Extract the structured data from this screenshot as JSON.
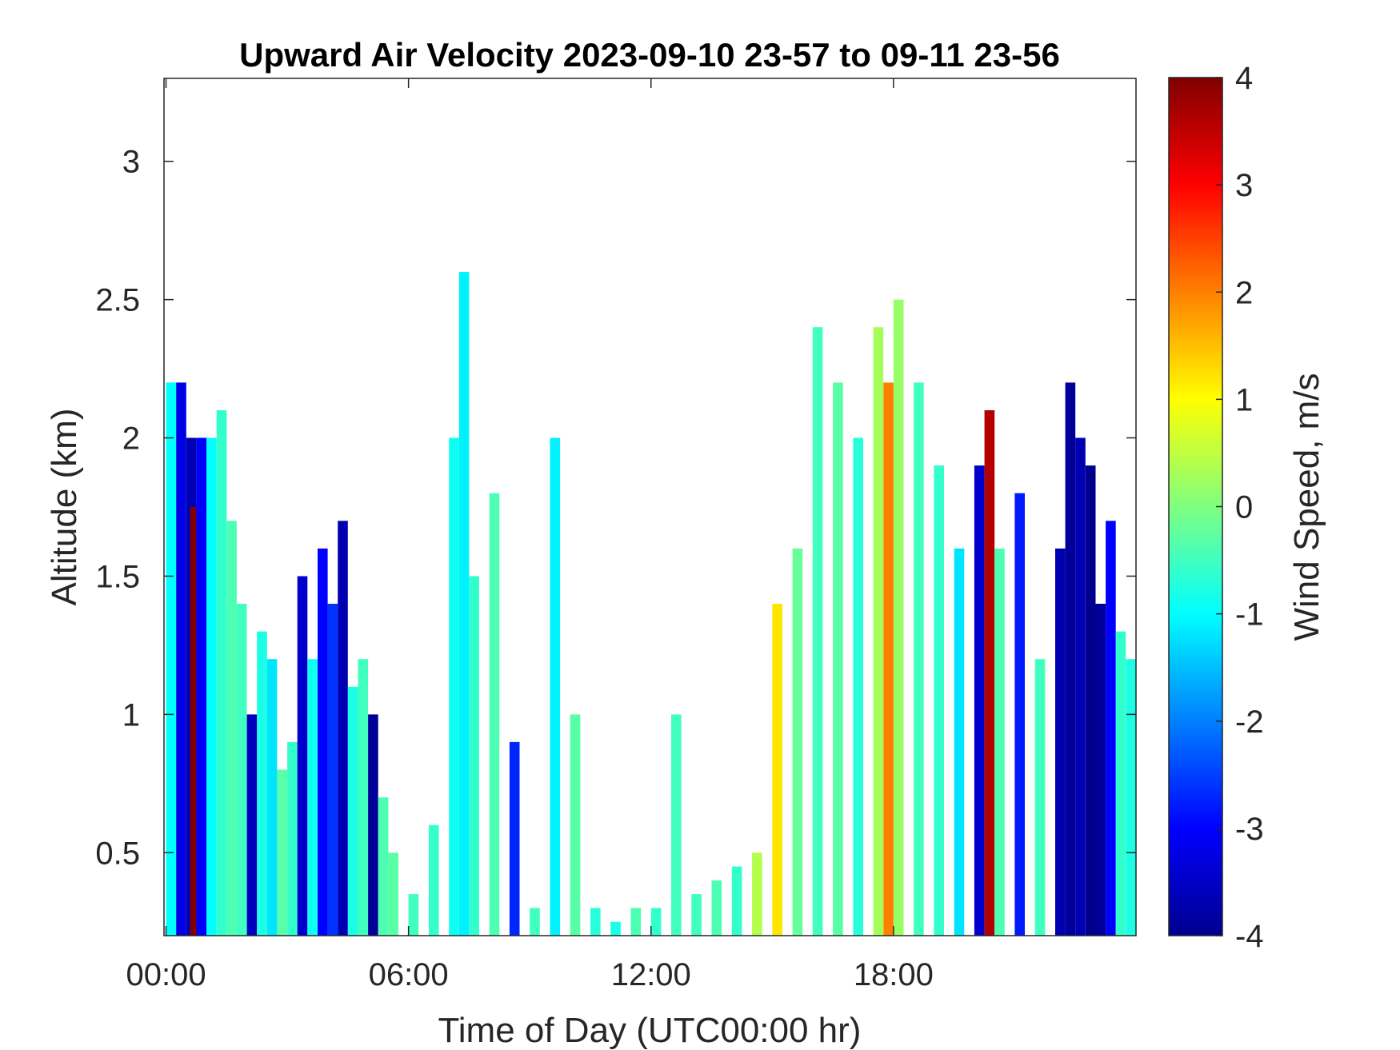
{
  "chart_data": {
    "type": "heatmap",
    "title": "Upward Air Velocity 2023-09-10 23-57 to 09-11 23-56",
    "xlabel": "Time of Day (UTC00:00 hr)",
    "ylabel": "Altitude (km)",
    "colorbar_label": "Wind Speed, m/s",
    "colormap": "jet",
    "xlim_hours": [
      -0.05,
      24.0
    ],
    "ylim_km": [
      0.2,
      3.3
    ],
    "clim": [
      -4,
      4
    ],
    "x_ticks": [
      {
        "value": 0,
        "label": "00:00"
      },
      {
        "value": 6,
        "label": "06:00"
      },
      {
        "value": 12,
        "label": "12:00"
      },
      {
        "value": 18,
        "label": "18:00"
      }
    ],
    "y_ticks": [
      {
        "value": 0.5,
        "label": "0.5"
      },
      {
        "value": 1,
        "label": "1"
      },
      {
        "value": 1.5,
        "label": "1.5"
      },
      {
        "value": 2,
        "label": "2"
      },
      {
        "value": 2.5,
        "label": "2.5"
      },
      {
        "value": 3,
        "label": "3"
      }
    ],
    "colorbar_ticks": [
      {
        "value": 4,
        "label": "4"
      },
      {
        "value": 3,
        "label": "3"
      },
      {
        "value": 2,
        "label": "2"
      },
      {
        "value": 1,
        "label": "1"
      },
      {
        "value": 0,
        "label": "0"
      },
      {
        "value": -1,
        "label": "-1"
      },
      {
        "value": -2,
        "label": "-2"
      },
      {
        "value": -3,
        "label": "-3"
      },
      {
        "value": -4,
        "label": "-4"
      }
    ],
    "grid": false,
    "columns": [
      {
        "t": 0.0,
        "top": 2.2,
        "v": -1.0
      },
      {
        "t": 0.25,
        "top": 2.2,
        "v": -3.2
      },
      {
        "t": 0.5,
        "top": 2.0,
        "v": -3.6
      },
      {
        "t": 0.6,
        "top": 1.75,
        "v": 4.0
      },
      {
        "t": 0.75,
        "top": 2.0,
        "v": -3.0
      },
      {
        "t": 1.0,
        "top": 2.0,
        "v": -1.0
      },
      {
        "t": 1.25,
        "top": 2.1,
        "v": -0.6
      },
      {
        "t": 1.5,
        "top": 1.7,
        "v": -0.4
      },
      {
        "t": 1.75,
        "top": 1.4,
        "v": -0.5
      },
      {
        "t": 2.0,
        "top": 1.0,
        "v": -3.5
      },
      {
        "t": 2.25,
        "top": 1.3,
        "v": -0.8
      },
      {
        "t": 2.5,
        "top": 1.2,
        "v": -1.2
      },
      {
        "t": 2.75,
        "top": 0.8,
        "v": -0.3
      },
      {
        "t": 3.0,
        "top": 0.9,
        "v": -0.6
      },
      {
        "t": 3.25,
        "top": 1.5,
        "v": -3.4
      },
      {
        "t": 3.5,
        "top": 1.2,
        "v": -0.9
      },
      {
        "t": 3.75,
        "top": 1.6,
        "v": -3.0
      },
      {
        "t": 4.0,
        "top": 1.4,
        "v": -2.6
      },
      {
        "t": 4.25,
        "top": 1.7,
        "v": -3.6
      },
      {
        "t": 4.5,
        "top": 1.1,
        "v": -0.8
      },
      {
        "t": 4.75,
        "top": 1.2,
        "v": -0.5
      },
      {
        "t": 5.0,
        "top": 1.0,
        "v": -3.8
      },
      {
        "t": 5.25,
        "top": 0.7,
        "v": -0.4
      },
      {
        "t": 5.5,
        "top": 0.5,
        "v": -0.3
      },
      {
        "t": 6.0,
        "top": 0.35,
        "v": -0.5
      },
      {
        "t": 6.5,
        "top": 0.6,
        "v": -0.6
      },
      {
        "t": 7.0,
        "top": 2.0,
        "v": -0.9
      },
      {
        "t": 7.25,
        "top": 2.6,
        "v": -1.1
      },
      {
        "t": 7.5,
        "top": 1.5,
        "v": -0.6
      },
      {
        "t": 8.0,
        "top": 1.8,
        "v": -0.4
      },
      {
        "t": 8.5,
        "top": 0.9,
        "v": -2.7
      },
      {
        "t": 9.0,
        "top": 0.3,
        "v": -0.5
      },
      {
        "t": 9.5,
        "top": 2.0,
        "v": -1.1
      },
      {
        "t": 10.0,
        "top": 1.0,
        "v": -0.3
      },
      {
        "t": 10.5,
        "top": 0.3,
        "v": -0.7
      },
      {
        "t": 11.0,
        "top": 0.25,
        "v": -0.8
      },
      {
        "t": 11.5,
        "top": 0.3,
        "v": -0.4
      },
      {
        "t": 12.0,
        "top": 0.3,
        "v": -0.6
      },
      {
        "t": 12.5,
        "top": 1.0,
        "v": -0.5
      },
      {
        "t": 13.0,
        "top": 0.35,
        "v": -0.5
      },
      {
        "t": 13.5,
        "top": 0.4,
        "v": -0.4
      },
      {
        "t": 14.0,
        "top": 0.45,
        "v": -0.6
      },
      {
        "t": 14.5,
        "top": 0.5,
        "v": 0.4
      },
      {
        "t": 15.0,
        "top": 1.4,
        "v": 1.2
      },
      {
        "t": 15.5,
        "top": 1.6,
        "v": -0.2
      },
      {
        "t": 16.0,
        "top": 2.4,
        "v": -0.5
      },
      {
        "t": 16.5,
        "top": 2.2,
        "v": -0.3
      },
      {
        "t": 17.0,
        "top": 2.0,
        "v": -0.7
      },
      {
        "t": 17.5,
        "top": 2.4,
        "v": 0.3
      },
      {
        "t": 17.75,
        "top": 2.2,
        "v": 2.0
      },
      {
        "t": 18.0,
        "top": 2.5,
        "v": 0.2
      },
      {
        "t": 18.5,
        "top": 2.2,
        "v": -0.5
      },
      {
        "t": 19.0,
        "top": 1.9,
        "v": -0.6
      },
      {
        "t": 19.5,
        "top": 1.6,
        "v": -1.2
      },
      {
        "t": 20.0,
        "top": 1.9,
        "v": -3.4
      },
      {
        "t": 20.25,
        "top": 2.1,
        "v": 3.6
      },
      {
        "t": 20.5,
        "top": 1.6,
        "v": -0.4
      },
      {
        "t": 21.0,
        "top": 1.8,
        "v": -2.8
      },
      {
        "t": 21.5,
        "top": 1.2,
        "v": -0.5
      },
      {
        "t": 22.0,
        "top": 1.6,
        "v": -3.6
      },
      {
        "t": 22.25,
        "top": 2.2,
        "v": -3.8
      },
      {
        "t": 22.5,
        "top": 2.0,
        "v": -3.6
      },
      {
        "t": 22.75,
        "top": 1.9,
        "v": -3.9
      },
      {
        "t": 23.0,
        "top": 1.4,
        "v": -3.8
      },
      {
        "t": 23.25,
        "top": 1.7,
        "v": -3.0
      },
      {
        "t": 23.5,
        "top": 1.3,
        "v": -0.6
      },
      {
        "t": 23.75,
        "top": 1.2,
        "v": -0.8
      }
    ]
  }
}
